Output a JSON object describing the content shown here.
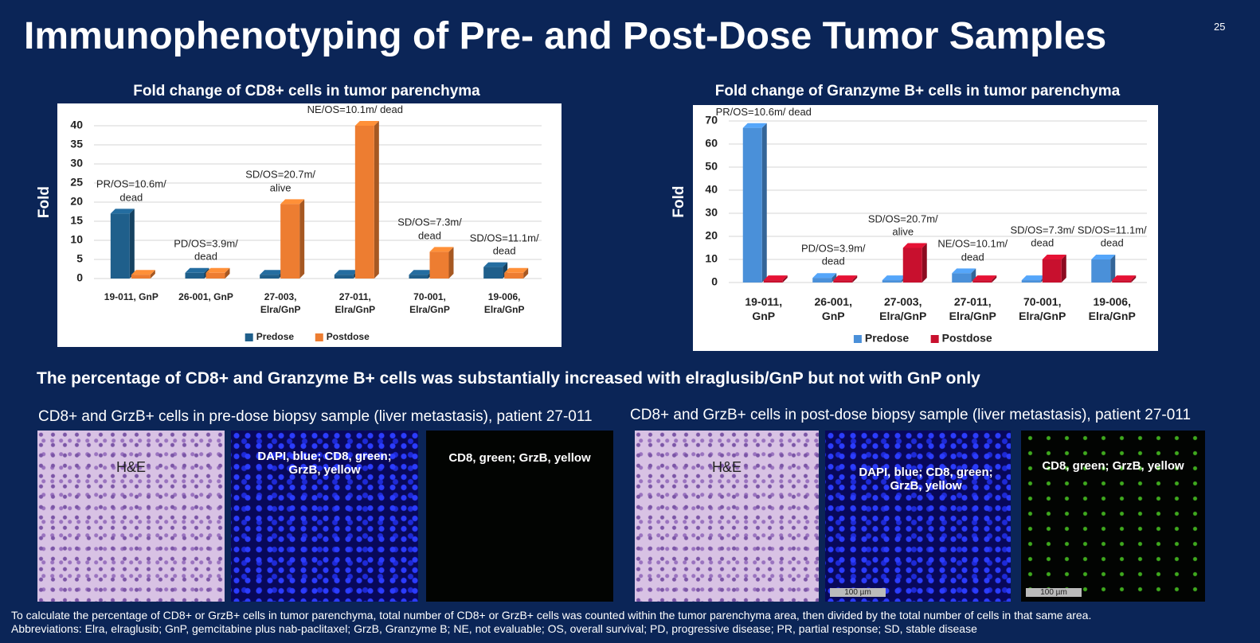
{
  "title": "Immunophenotyping of Pre- and Post-Dose Tumor Samples",
  "page_number": "25",
  "chart_data": [
    {
      "type": "bar",
      "title": "Fold change of CD8+ cells in tumor parenchyma",
      "y_label": "Fold",
      "categories": [
        "19-011, GnP",
        "26-001, GnP",
        "27-003, Elra/GnP",
        "27-011, Elra/GnP",
        "70-001, Elra/GnP",
        "19-006, Elra/GnP"
      ],
      "series": [
        {
          "name": "Predose",
          "color": "#1f5f8b",
          "values": [
            17,
            1.5,
            1,
            1,
            1,
            3
          ]
        },
        {
          "name": "Postdose",
          "color": "#ed7d31",
          "values": [
            1,
            1.5,
            19.5,
            40,
            7,
            1.5
          ]
        }
      ],
      "annotations": [
        "PR/OS=10.6m/ dead",
        "PD/OS=3.9m/ dead",
        "SD/OS=20.7m/ alive",
        "NE/OS=10.1m/ dead",
        "SD/OS=7.3m/ dead",
        "SD/OS=11.1m/ dead"
      ],
      "ylim": [
        0,
        40
      ],
      "yticks": [
        0,
        5,
        10,
        15,
        20,
        25,
        30,
        35,
        40
      ],
      "grid": true,
      "legend": "bottom"
    },
    {
      "type": "bar",
      "title": "Fold change of Granzyme B+ cells in tumor parenchyma",
      "y_label": "Fold",
      "categories": [
        "19-011, GnP",
        "26-001, GnP",
        "27-003, Elra/GnP",
        "27-011, Elra/GnP",
        "70-001, Elra/GnP",
        "19-006, Elra/GnP"
      ],
      "series": [
        {
          "name": "Predose",
          "color": "#4a90d9",
          "values": [
            67,
            2,
            1,
            4,
            1,
            10
          ]
        },
        {
          "name": "Postdose",
          "color": "#c8102e",
          "values": [
            1,
            1,
            15,
            1,
            10,
            1
          ]
        }
      ],
      "annotations": [
        "PR/OS=10.6m/ dead",
        "PD/OS=3.9m/ dead",
        "SD/OS=20.7m/ alive",
        "NE/OS=10.1m/ dead",
        "SD/OS=7.3m/ dead",
        "SD/OS=11.1m/ dead"
      ],
      "ylim": [
        0,
        70
      ],
      "yticks": [
        0,
        10,
        20,
        30,
        40,
        50,
        60,
        70
      ],
      "grid": true,
      "legend": "bottom"
    }
  ],
  "summary": "The percentage of CD8+ and Granzyme B+ cells was substantially increased with elraglusib/GnP but not with GnP only",
  "panels": [
    {
      "caption": "CD8+ and GrzB+ cells in pre-dose biopsy sample (liver metastasis), patient 27-011",
      "images": [
        {
          "label": "H&E"
        },
        {
          "label": "DAPI, blue; CD8, green; GrzB, yellow"
        },
        {
          "label": "CD8, green; GrzB, yellow"
        }
      ]
    },
    {
      "caption": "CD8+ and GrzB+ cells in post-dose biopsy sample (liver metastasis), patient 27-011",
      "images": [
        {
          "label": "H&E"
        },
        {
          "label": "DAPI, blue; CD8, green; GrzB, yellow",
          "scale": "100 µm"
        },
        {
          "label": "CD8, green; GrzB, yellow",
          "scale": "100 µm"
        }
      ]
    }
  ],
  "footnotes": [
    "To calculate the percentage of CD8+ or GrzB+ cells in tumor parenchyma, total number of CD8+ or GrzB+ cells was counted within the tumor parenchyma area, then divided by the total number of cells in that same area.",
    "Abbreviations: Elra, elraglusib; GnP, gemcitabine plus nab-paclitaxel; GrzB, Granzyme B; NE, not evaluable; OS, overall survival; PD, progressive disease; PR, partial response; SD, stable disease"
  ]
}
